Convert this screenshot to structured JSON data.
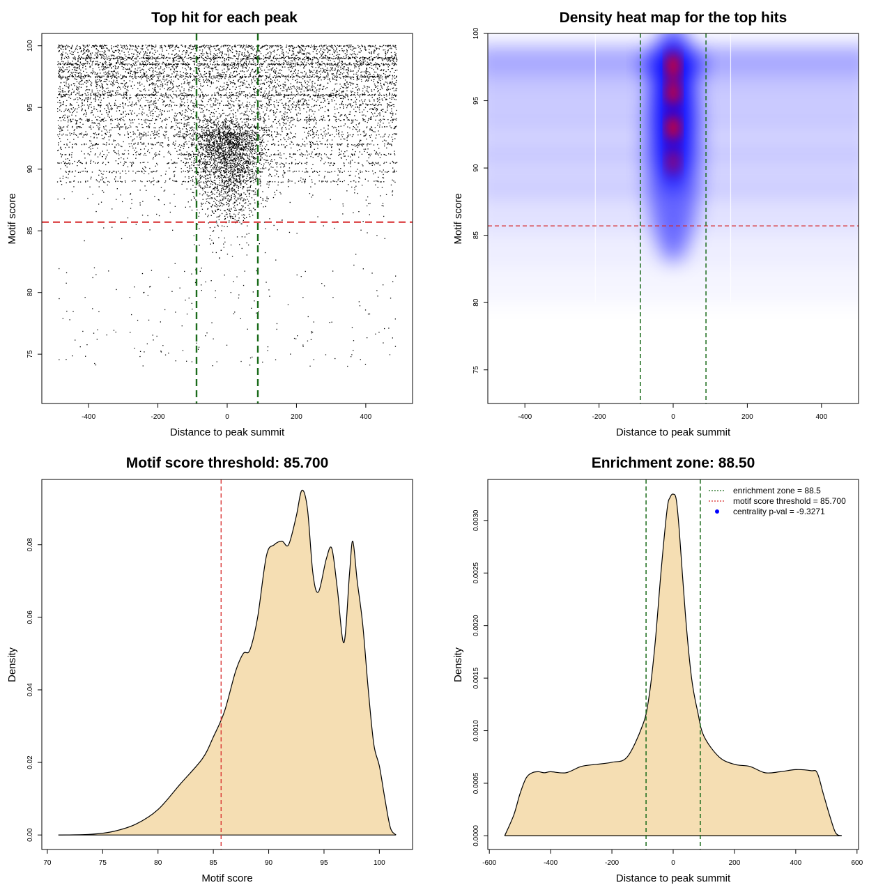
{
  "colors": {
    "threshold": "#d62728",
    "zone": "#1a6b1a",
    "fill": "#f5deb3",
    "heat_low": "#ffffff",
    "heat_mid": "#0000ff",
    "heat_high": "#ff0000",
    "point": "#000000",
    "legend_dot": "#0000ff"
  },
  "chart_data": [
    {
      "type": "scatter",
      "title": "Top hit for each peak",
      "xlabel": "Distance to peak summit",
      "ylabel": "Motif score",
      "xlim": [
        -535,
        535
      ],
      "ylim": [
        71,
        101
      ],
      "xticks": [
        -400,
        -200,
        0,
        200,
        400
      ],
      "yticks": [
        75,
        80,
        85,
        90,
        95,
        100
      ],
      "threshold": 85.7,
      "zone": [
        -88.5,
        88.5
      ],
      "grid": false
    },
    {
      "type": "heatmap",
      "title": "Density heat map for the top hits",
      "xlabel": "Distance to peak summit",
      "ylabel": "Motif score",
      "xlim": [
        -500,
        500
      ],
      "ylim": [
        72.5,
        100
      ],
      "xticks": [
        -400,
        -200,
        0,
        200,
        400
      ],
      "yticks": [
        75,
        80,
        85,
        90,
        95,
        100
      ],
      "threshold": 85.7,
      "zone": [
        -88.5,
        88.5
      ],
      "hotspots": [
        {
          "x": 0,
          "y": 97.6,
          "level": 1.0
        },
        {
          "x": 0,
          "y": 95.6,
          "level": 0.95
        },
        {
          "x": 0,
          "y": 93.0,
          "level": 1.0
        },
        {
          "x": 0,
          "y": 90.5,
          "level": 0.6
        }
      ]
    },
    {
      "type": "area",
      "title": "Motif score threshold: 85.700",
      "xlabel": "Motif score",
      "ylabel": "Density",
      "xlim": [
        69.5,
        103
      ],
      "ylim": [
        -0.004,
        0.098
      ],
      "xticks": [
        70,
        75,
        80,
        85,
        90,
        95,
        100
      ],
      "yticks": [
        0.0,
        0.02,
        0.04,
        0.06,
        0.08
      ],
      "ytick_labels": [
        "0.00",
        "0.02",
        "0.04",
        "0.06",
        "0.08"
      ],
      "threshold": 85.7,
      "x": [
        71,
        74,
        76,
        78,
        80,
        82,
        84,
        85,
        86,
        87,
        87.7,
        88.3,
        89,
        89.8,
        90.5,
        91.2,
        91.8,
        92.5,
        93,
        93.5,
        94,
        94.5,
        95.2,
        95.7,
        96.2,
        96.8,
        97.3,
        97.6,
        98,
        98.5,
        99,
        99.5,
        100,
        100.5,
        101,
        101.5
      ],
      "y": [
        0.0,
        0.0002,
        0.001,
        0.003,
        0.007,
        0.014,
        0.021,
        0.027,
        0.034,
        0.045,
        0.05,
        0.051,
        0.06,
        0.077,
        0.08,
        0.081,
        0.08,
        0.088,
        0.095,
        0.09,
        0.072,
        0.067,
        0.076,
        0.079,
        0.068,
        0.053,
        0.072,
        0.081,
        0.07,
        0.058,
        0.04,
        0.025,
        0.019,
        0.01,
        0.002,
        0.0
      ]
    },
    {
      "type": "area",
      "title": "Enrichment zone: 88.50",
      "xlabel": "Distance to peak summit",
      "ylabel": "Density",
      "xlim": [
        -605,
        605
      ],
      "ylim": [
        -0.00013,
        0.00339
      ],
      "xticks": [
        -600,
        -400,
        -200,
        0,
        200,
        400,
        600
      ],
      "yticks": [
        0.0,
        0.0005,
        0.001,
        0.0015,
        0.002,
        0.0025,
        0.003
      ],
      "ytick_labels": [
        "0.0000",
        "0.0005",
        "0.0010",
        "0.0015",
        "0.0020",
        "0.0025",
        "0.0030"
      ],
      "zone": [
        -88.5,
        88.5
      ],
      "x": [
        -550,
        -520,
        -500,
        -480,
        -460,
        -440,
        -420,
        -400,
        -350,
        -300,
        -250,
        -200,
        -150,
        -100,
        -80,
        -60,
        -40,
        -20,
        -10,
        0,
        10,
        20,
        40,
        60,
        80,
        100,
        150,
        200,
        250,
        300,
        350,
        400,
        450,
        470,
        490,
        510,
        530,
        550
      ],
      "y": [
        0.0,
        0.0002,
        0.0004,
        0.00055,
        0.0006,
        0.00061,
        0.0006,
        0.00061,
        0.0006,
        0.00066,
        0.00068,
        0.0007,
        0.00075,
        0.00105,
        0.0013,
        0.0018,
        0.0025,
        0.0031,
        0.00322,
        0.00325,
        0.0032,
        0.0029,
        0.0021,
        0.0015,
        0.00118,
        0.00095,
        0.00075,
        0.00068,
        0.00066,
        0.0006,
        0.00061,
        0.00063,
        0.00062,
        0.0006,
        0.0004,
        0.0002,
        3e-05,
        0.0
      ],
      "legend": [
        {
          "label": "enrichment zone = 88.5",
          "style": "dotted-green"
        },
        {
          "label": "motif score threshold = 85.700",
          "style": "dotted-red"
        },
        {
          "label": "centrality p-val = -9.3271",
          "style": "dot-blue"
        }
      ],
      "legend_position": "top-right"
    }
  ]
}
